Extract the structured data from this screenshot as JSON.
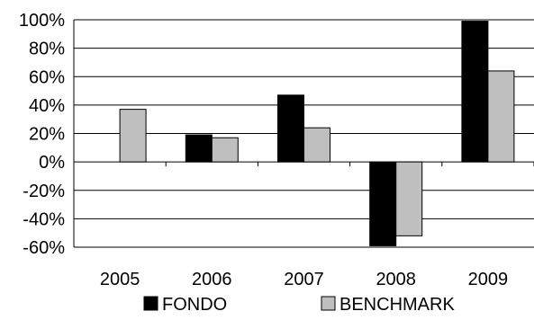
{
  "chart_data": {
    "type": "bar",
    "categories": [
      "2005",
      "2006",
      "2007",
      "2008",
      "2009"
    ],
    "series": [
      {
        "name": "FONDO",
        "values": [
          null,
          19,
          47,
          -59,
          99
        ],
        "color": "#000000"
      },
      {
        "name": "BENCHMARK",
        "values": [
          37,
          17,
          24,
          -52,
          64
        ],
        "color": "#bfbfbf"
      }
    ],
    "ylim": [
      -60,
      100
    ],
    "yticks": [
      100,
      80,
      60,
      40,
      20,
      0,
      -20,
      -40,
      -60
    ],
    "ytick_format": "%",
    "grid": true,
    "legend_position": "bottom",
    "title": "",
    "xlabel": "",
    "ylabel": ""
  }
}
